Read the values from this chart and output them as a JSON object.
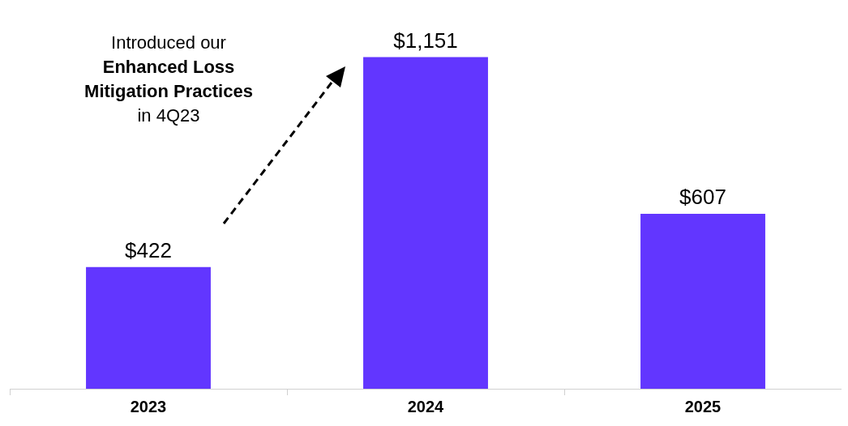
{
  "chart_data": {
    "type": "bar",
    "categories": [
      "2023",
      "2024",
      "2025"
    ],
    "values": [
      422,
      1151,
      607
    ],
    "value_labels": [
      "$422",
      "$1,151",
      "$607"
    ],
    "color": "#6236ff",
    "annotations": [
      "Introduced our\nEnhanced Loss\nMitigation Practices\nin 4Q23"
    ]
  }
}
